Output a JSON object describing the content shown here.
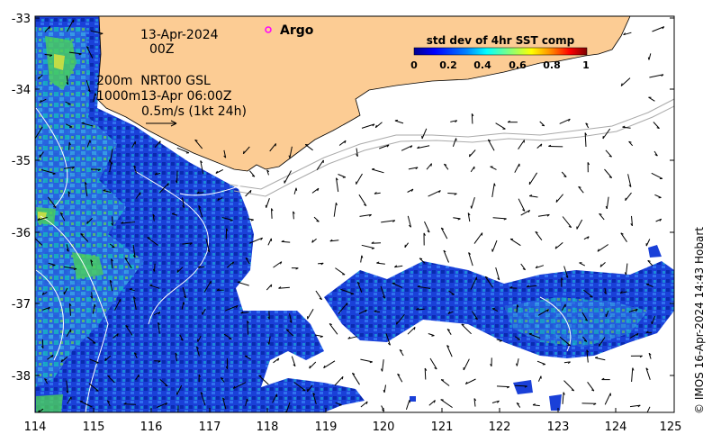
{
  "map": {
    "date": "13-Apr-2024",
    "time": "00Z",
    "legend_title": "std dev of 4hr SST comp",
    "legend_ticks": [
      "0",
      "0.2",
      "0.4",
      "0.6",
      "0.8",
      "1"
    ],
    "colormap": [
      "#00008f",
      "#0000ff",
      "#0080ff",
      "#00ffff",
      "#80ff80",
      "#ffff00",
      "#ff8000",
      "#ff0000",
      "#800000"
    ],
    "argo_label": "Argo",
    "argo_marker_color": "#ff00ff",
    "contour_line1": "200m  NRT00 GSL",
    "contour_line2": "1000m13-Apr 06:00Z",
    "vector_scale_label": "0.5m/s (1kt 24h)",
    "credit": "© IMOS 16-Apr-2024 14:43 Hobart",
    "land_color": "#fccc94",
    "x_ticks": [
      "114",
      "115",
      "116",
      "117",
      "118",
      "119",
      "120",
      "121",
      "122",
      "123",
      "124",
      "125"
    ],
    "y_ticks": [
      "-33",
      "-34",
      "-35",
      "-36",
      "-37",
      "-38"
    ],
    "lon_range": [
      114,
      125
    ],
    "lat_range": [
      -38.5,
      -33
    ]
  }
}
